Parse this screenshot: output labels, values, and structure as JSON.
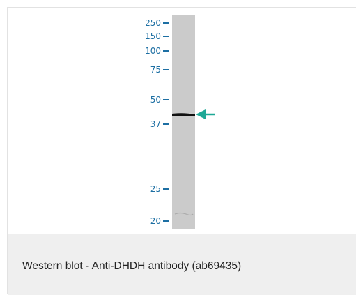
{
  "figure": {
    "caption": "Western blot - Anti-DHDH antibody (ab69435)",
    "markers": [
      "250",
      "150",
      "100",
      "75",
      "50",
      "37",
      "25",
      "20"
    ],
    "marker_color": "#1d6fa3",
    "arrow_color": "#1ea896",
    "lane_color": "#cbcbcb",
    "band_color": "#111111"
  }
}
